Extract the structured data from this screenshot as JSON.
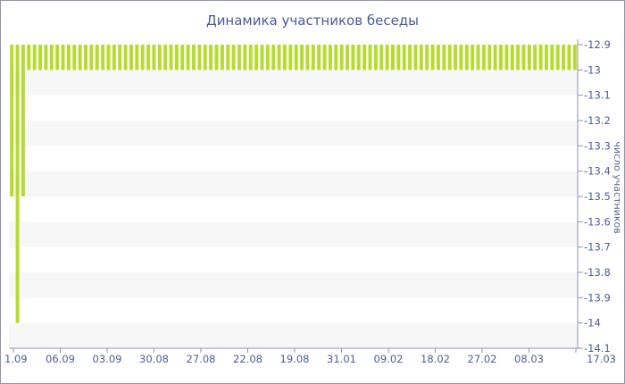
{
  "chart_data": {
    "type": "bar",
    "title": "Динамика участников беседы",
    "ylabel": "число участников",
    "xlabel": "",
    "ylim": [
      -14.1,
      -12.9
    ],
    "y_axis_inverted": true,
    "y_axis_position": "right",
    "y_ticks": [
      "-12.9",
      "-13",
      "-13.1",
      "-13.2",
      "-13.3",
      "-13.4",
      "-13.5",
      "-13.6",
      "-13.7",
      "-13.8",
      "-13.9",
      "-14",
      "-14.1"
    ],
    "x_tick_labels": [
      "1.09",
      "06.09",
      "03.09",
      "30.08",
      "27.08",
      "22.08",
      "19.08",
      "31.01",
      "09.02",
      "18.02",
      "27.02",
      "08.03",
      "17.03"
    ],
    "bar_count": 100,
    "bar_color": "#b5dc2c",
    "band_color": "#f7f7f7",
    "grid": true,
    "values_note": "bar 1 = -13.5, bar 2 = -14, bar 3 = -13.5, bars 4-100 = -13",
    "values": [
      -13.5,
      -14,
      -13.5,
      -13,
      -13,
      -13,
      -13,
      -13,
      -13,
      -13,
      -13,
      -13,
      -13,
      -13,
      -13,
      -13,
      -13,
      -13,
      -13,
      -13,
      -13,
      -13,
      -13,
      -13,
      -13,
      -13,
      -13,
      -13,
      -13,
      -13,
      -13,
      -13,
      -13,
      -13,
      -13,
      -13,
      -13,
      -13,
      -13,
      -13,
      -13,
      -13,
      -13,
      -13,
      -13,
      -13,
      -13,
      -13,
      -13,
      -13,
      -13,
      -13,
      -13,
      -13,
      -13,
      -13,
      -13,
      -13,
      -13,
      -13,
      -13,
      -13,
      -13,
      -13,
      -13,
      -13,
      -13,
      -13,
      -13,
      -13,
      -13,
      -13,
      -13,
      -13,
      -13,
      -13,
      -13,
      -13,
      -13,
      -13,
      -13,
      -13,
      -13,
      -13,
      -13,
      -13,
      -13,
      -13,
      -13,
      -13,
      -13,
      -13,
      -13,
      -13,
      -13,
      -13,
      -13,
      -13,
      -13,
      -13
    ]
  }
}
